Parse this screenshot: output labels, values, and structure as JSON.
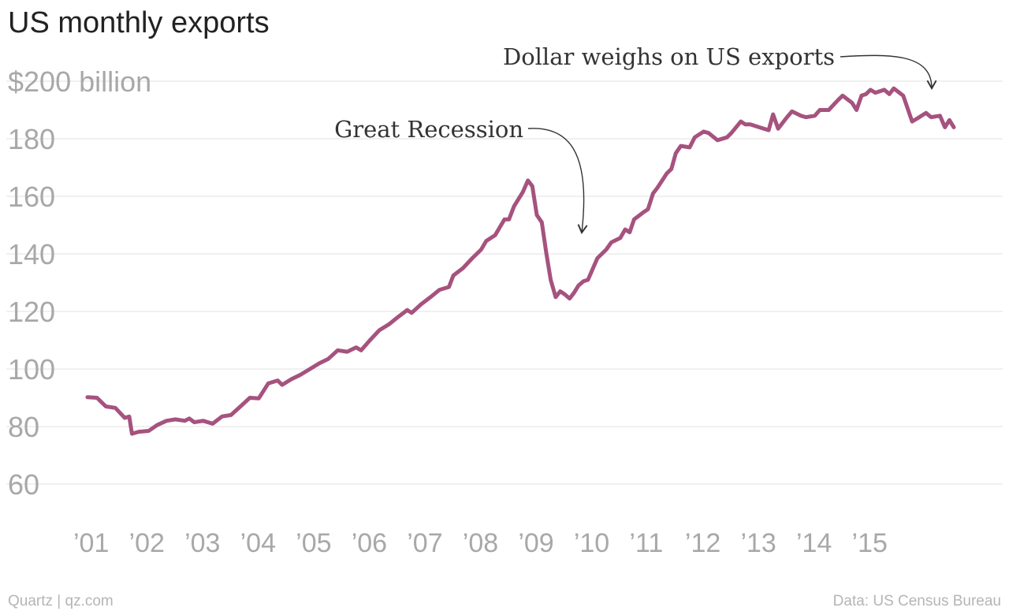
{
  "chart_data": {
    "type": "line",
    "title": "US monthly exports",
    "y_unit_label": "$200 billion",
    "yticks": [
      60,
      80,
      100,
      120,
      140,
      160,
      180,
      200
    ],
    "ylim": [
      50,
      200
    ],
    "xlim": [
      2001.0,
      2016.3
    ],
    "xticks": [
      {
        "value": 2001,
        "label": "’01"
      },
      {
        "value": 2002,
        "label": "’02"
      },
      {
        "value": 2003,
        "label": "’03"
      },
      {
        "value": 2004,
        "label": "’04"
      },
      {
        "value": 2005,
        "label": "’05"
      },
      {
        "value": 2006,
        "label": "’06"
      },
      {
        "value": 2007,
        "label": "’07"
      },
      {
        "value": 2008,
        "label": "’08"
      },
      {
        "value": 2009,
        "label": "’09"
      },
      {
        "value": 2010,
        "label": "’10"
      },
      {
        "value": 2011,
        "label": "’11"
      },
      {
        "value": 2012,
        "label": "’12"
      },
      {
        "value": 2013,
        "label": "’13"
      },
      {
        "value": 2014,
        "label": "’14"
      },
      {
        "value": 2015,
        "label": "’15"
      }
    ],
    "grid": true,
    "series": [
      {
        "name": "",
        "color": "#a6527f",
        "points": [
          [
            2001.0,
            90.2
          ],
          [
            2001.17,
            90.0
          ],
          [
            2001.33,
            87.0
          ],
          [
            2001.5,
            86.5
          ],
          [
            2001.67,
            83.0
          ],
          [
            2001.75,
            83.5
          ],
          [
            2001.8,
            77.5
          ],
          [
            2001.92,
            78.2
          ],
          [
            2002.1,
            78.5
          ],
          [
            2002.25,
            80.5
          ],
          [
            2002.42,
            82.0
          ],
          [
            2002.58,
            82.5
          ],
          [
            2002.75,
            82.0
          ],
          [
            2002.83,
            82.8
          ],
          [
            2002.92,
            81.5
          ],
          [
            2003.08,
            82.0
          ],
          [
            2003.25,
            81.0
          ],
          [
            2003.42,
            83.5
          ],
          [
            2003.58,
            84.0
          ],
          [
            2003.75,
            87.0
          ],
          [
            2003.92,
            90.0
          ],
          [
            2004.08,
            89.8
          ],
          [
            2004.25,
            95.0
          ],
          [
            2004.42,
            96.0
          ],
          [
            2004.5,
            94.5
          ],
          [
            2004.67,
            96.5
          ],
          [
            2004.83,
            98.0
          ],
          [
            2005.0,
            100.0
          ],
          [
            2005.17,
            102.0
          ],
          [
            2005.33,
            103.5
          ],
          [
            2005.5,
            106.5
          ],
          [
            2005.67,
            106.0
          ],
          [
            2005.83,
            107.5
          ],
          [
            2005.92,
            106.5
          ],
          [
            2006.08,
            110.0
          ],
          [
            2006.25,
            113.5
          ],
          [
            2006.42,
            115.5
          ],
          [
            2006.58,
            118.0
          ],
          [
            2006.75,
            120.5
          ],
          [
            2006.83,
            119.5
          ],
          [
            2007.0,
            122.5
          ],
          [
            2007.17,
            125.0
          ],
          [
            2007.33,
            127.5
          ],
          [
            2007.5,
            128.5
          ],
          [
            2007.58,
            132.5
          ],
          [
            2007.75,
            135.0
          ],
          [
            2007.92,
            138.5
          ],
          [
            2008.08,
            141.5
          ],
          [
            2008.17,
            144.5
          ],
          [
            2008.33,
            146.5
          ],
          [
            2008.5,
            152.0
          ],
          [
            2008.58,
            152.0
          ],
          [
            2008.67,
            156.5
          ],
          [
            2008.83,
            161.5
          ],
          [
            2008.92,
            165.5
          ],
          [
            2009.0,
            163.5
          ],
          [
            2009.08,
            153.5
          ],
          [
            2009.17,
            151.0
          ],
          [
            2009.25,
            140.5
          ],
          [
            2009.33,
            131.0
          ],
          [
            2009.42,
            125.0
          ],
          [
            2009.5,
            127.0
          ],
          [
            2009.58,
            126.0
          ],
          [
            2009.67,
            124.5
          ],
          [
            2009.75,
            126.5
          ],
          [
            2009.83,
            129.0
          ],
          [
            2009.92,
            130.5
          ],
          [
            2010.0,
            131.0
          ],
          [
            2010.17,
            138.5
          ],
          [
            2010.33,
            141.5
          ],
          [
            2010.42,
            144.0
          ],
          [
            2010.58,
            145.5
          ],
          [
            2010.67,
            148.5
          ],
          [
            2010.75,
            147.5
          ],
          [
            2010.83,
            152.0
          ],
          [
            2011.0,
            154.5
          ],
          [
            2011.08,
            155.5
          ],
          [
            2011.17,
            161.0
          ],
          [
            2011.25,
            163.0
          ],
          [
            2011.42,
            168.0
          ],
          [
            2011.5,
            169.5
          ],
          [
            2011.58,
            175.0
          ],
          [
            2011.67,
            177.5
          ],
          [
            2011.83,
            177.0
          ],
          [
            2011.92,
            180.5
          ],
          [
            2012.08,
            182.5
          ],
          [
            2012.17,
            182.0
          ],
          [
            2012.33,
            179.5
          ],
          [
            2012.5,
            180.5
          ],
          [
            2012.58,
            182.0
          ],
          [
            2012.75,
            186.0
          ],
          [
            2012.83,
            185.0
          ],
          [
            2012.92,
            185.0
          ],
          [
            2013.08,
            184.0
          ],
          [
            2013.25,
            183.0
          ],
          [
            2013.33,
            188.5
          ],
          [
            2013.42,
            183.5
          ],
          [
            2013.58,
            187.5
          ],
          [
            2013.67,
            189.5
          ],
          [
            2013.83,
            188.0
          ],
          [
            2013.92,
            187.5
          ],
          [
            2014.08,
            188.0
          ],
          [
            2014.17,
            190.0
          ],
          [
            2014.33,
            190.0
          ],
          [
            2014.5,
            193.5
          ],
          [
            2014.58,
            195.0
          ],
          [
            2014.75,
            192.5
          ],
          [
            2014.83,
            190.0
          ],
          [
            2014.92,
            195.0
          ],
          [
            2015.0,
            195.5
          ],
          [
            2015.08,
            197.0
          ],
          [
            2015.17,
            196.0
          ],
          [
            2015.33,
            197.0
          ],
          [
            2015.42,
            195.5
          ],
          [
            2015.5,
            197.5
          ],
          [
            2015.67,
            195.0
          ],
          [
            2015.83,
            186.0
          ],
          [
            2015.92,
            187.0
          ],
          [
            2016.08,
            189.0
          ],
          [
            2016.17,
            187.5
          ],
          [
            2016.33,
            188.0
          ],
          [
            2016.42,
            184.0
          ],
          [
            2016.5,
            186.5
          ],
          [
            2016.58,
            184.0
          ]
        ]
      }
    ],
    "annotations": [
      {
        "text": "Great Recession",
        "x": 2009.67,
        "y": 147
      },
      {
        "text": "Dollar weighs on US exports",
        "x": 2016.0,
        "y": 197.5
      }
    ]
  },
  "footer": {
    "source_left": "Quartz | qz.com",
    "source_right": "Data: US Census Bureau"
  }
}
